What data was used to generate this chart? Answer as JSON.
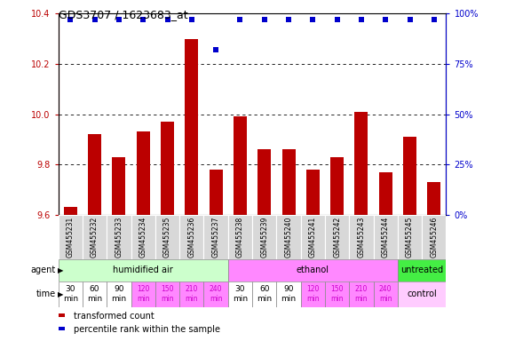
{
  "title": "GDS3707 / 1623683_at",
  "samples": [
    "GSM455231",
    "GSM455232",
    "GSM455233",
    "GSM455234",
    "GSM455235",
    "GSM455236",
    "GSM455237",
    "GSM455238",
    "GSM455239",
    "GSM455240",
    "GSM455241",
    "GSM455242",
    "GSM455243",
    "GSM455244",
    "GSM455245",
    "GSM455246"
  ],
  "bar_values": [
    9.63,
    9.92,
    9.83,
    9.93,
    9.97,
    10.3,
    9.78,
    9.99,
    9.86,
    9.86,
    9.78,
    9.83,
    10.01,
    9.77,
    9.91,
    9.73
  ],
  "percentile_values": [
    97,
    97,
    97,
    97,
    97,
    97,
    82,
    97,
    97,
    97,
    97,
    97,
    97,
    97,
    97,
    97
  ],
  "bar_color": "#bb0000",
  "percentile_color": "#0000cc",
  "ylim_lo": 9.6,
  "ylim_hi": 10.4,
  "yticks_left": [
    9.6,
    9.8,
    10.0,
    10.2,
    10.4
  ],
  "yticks_right": [
    0,
    25,
    50,
    75,
    100
  ],
  "grid_values": [
    9.8,
    10.0,
    10.2
  ],
  "agent_groups": [
    {
      "label": "humidified air",
      "start": 0,
      "end": 7,
      "color": "#ccffcc"
    },
    {
      "label": "ethanol",
      "start": 7,
      "end": 14,
      "color": "#ff88ff"
    },
    {
      "label": "untreated",
      "start": 14,
      "end": 16,
      "color": "#44ee44"
    }
  ],
  "time_labels_14": [
    "30\nmin",
    "60\nmin",
    "90\nmin",
    "120\nmin",
    "150\nmin",
    "210\nmin",
    "240\nmin",
    "30\nmin",
    "60\nmin",
    "90\nmin",
    "120\nmin",
    "150\nmin",
    "210\nmin",
    "240\nmin"
  ],
  "time_colors_14": [
    "#ffffff",
    "#ffffff",
    "#ffffff",
    "#ff88ff",
    "#ff88ff",
    "#ff88ff",
    "#ff88ff",
    "#ffffff",
    "#ffffff",
    "#ffffff",
    "#ff88ff",
    "#ff88ff",
    "#ff88ff",
    "#ff88ff"
  ],
  "time_text_colors_14": [
    "#000000",
    "#000000",
    "#000000",
    "#cc00cc",
    "#cc00cc",
    "#cc00cc",
    "#cc00cc",
    "#000000",
    "#000000",
    "#000000",
    "#cc00cc",
    "#cc00cc",
    "#cc00cc",
    "#cc00cc"
  ],
  "control_color": "#ffccff",
  "control_label": "control",
  "legend_items": [
    {
      "color": "#bb0000",
      "label": "transformed count"
    },
    {
      "color": "#0000cc",
      "label": "percentile rank within the sample"
    }
  ]
}
